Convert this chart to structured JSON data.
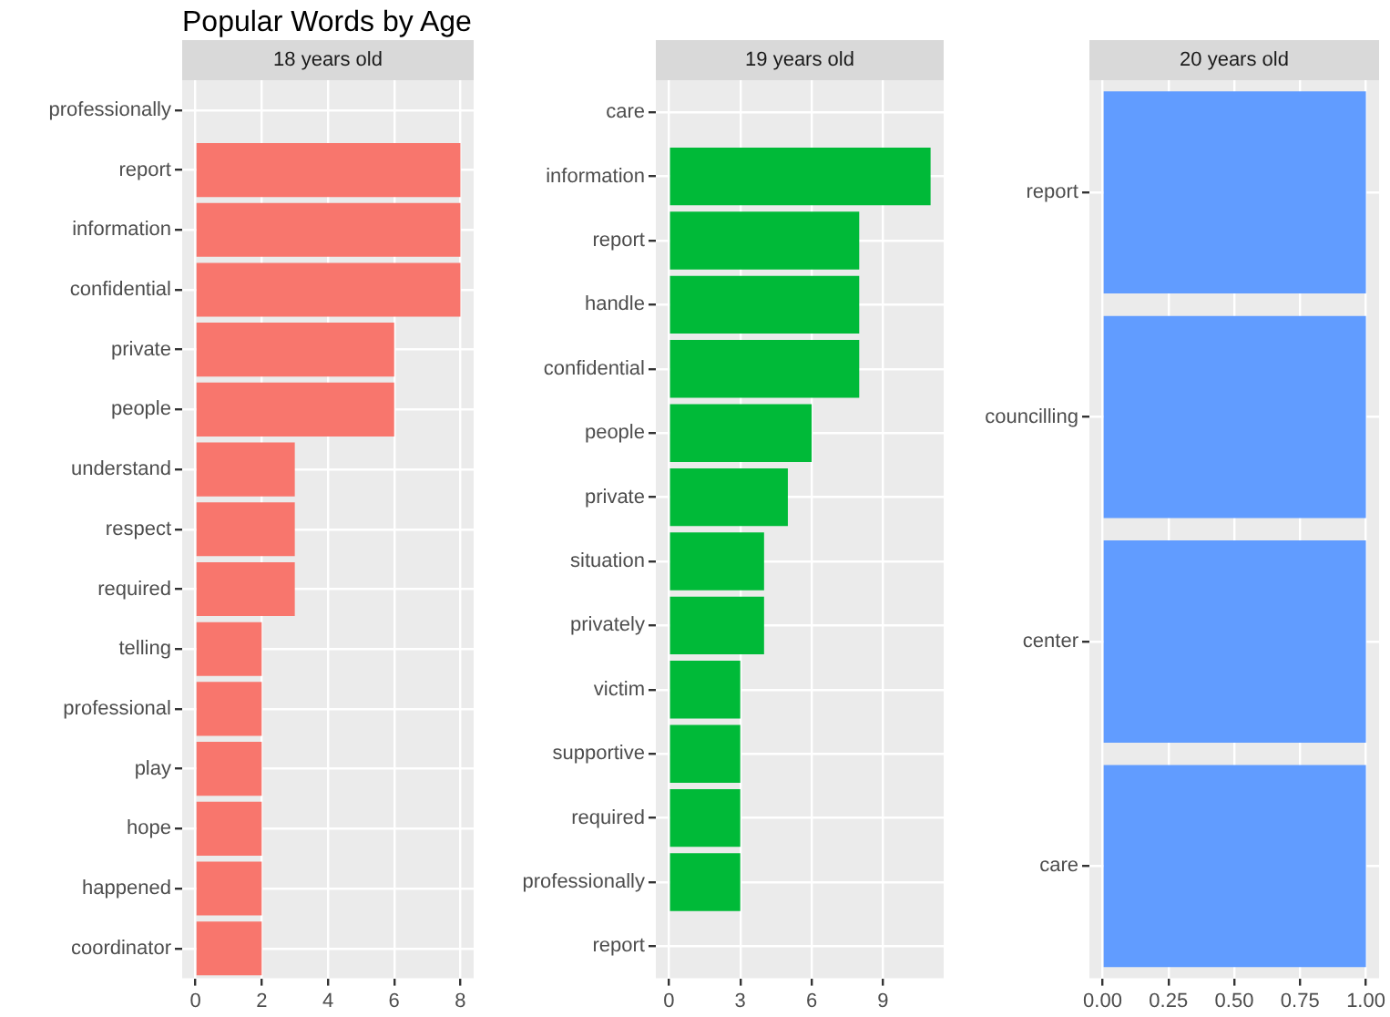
{
  "chart_data": [
    {
      "type": "bar",
      "title": "Popular Words by Age",
      "subtitle": "18 years old",
      "orientation": "horizontal",
      "grid": true,
      "categories": [
        "professionally",
        "report",
        "information",
        "confidential",
        "private",
        "people",
        "understand",
        "respect",
        "required",
        "telling",
        "professional",
        "play",
        "hope",
        "happened",
        "coordinator"
      ],
      "values": [
        null,
        8,
        8,
        8,
        6,
        6,
        3,
        3,
        3,
        2,
        2,
        2,
        2,
        2,
        2
      ],
      "color": "#f8766d",
      "xlim": [
        -0.4,
        8.4
      ],
      "xticks": [
        0,
        2,
        4,
        6,
        8
      ]
    },
    {
      "type": "bar",
      "subtitle": "19 years old",
      "orientation": "horizontal",
      "grid": true,
      "categories": [
        "care",
        "information",
        "report",
        "handle",
        "confidential",
        "people",
        "private",
        "situation",
        "privately",
        "victim",
        "supportive",
        "required",
        "professionally",
        "report"
      ],
      "values": [
        null,
        11,
        8,
        8,
        8,
        6,
        5,
        4,
        4,
        3,
        3,
        3,
        3,
        null
      ],
      "color": "#00ba38",
      "xlim": [
        -0.55,
        11.55
      ],
      "xticks": [
        0,
        3,
        6,
        9
      ]
    },
    {
      "type": "bar",
      "subtitle": "20 years old",
      "orientation": "horizontal",
      "grid": true,
      "categories": [
        "report",
        "councilling",
        "center",
        "care"
      ],
      "values": [
        1,
        1,
        1,
        1
      ],
      "color": "#619cff",
      "xlim": [
        -0.05,
        1.05
      ],
      "xticks": [
        {
          "value": 0,
          "label": "0.00"
        },
        {
          "value": 0.25,
          "label": "0.25"
        },
        {
          "value": 0.5,
          "label": "0.50"
        },
        {
          "value": 0.75,
          "label": "0.75"
        },
        {
          "value": 1,
          "label": "1.00"
        }
      ]
    }
  ]
}
